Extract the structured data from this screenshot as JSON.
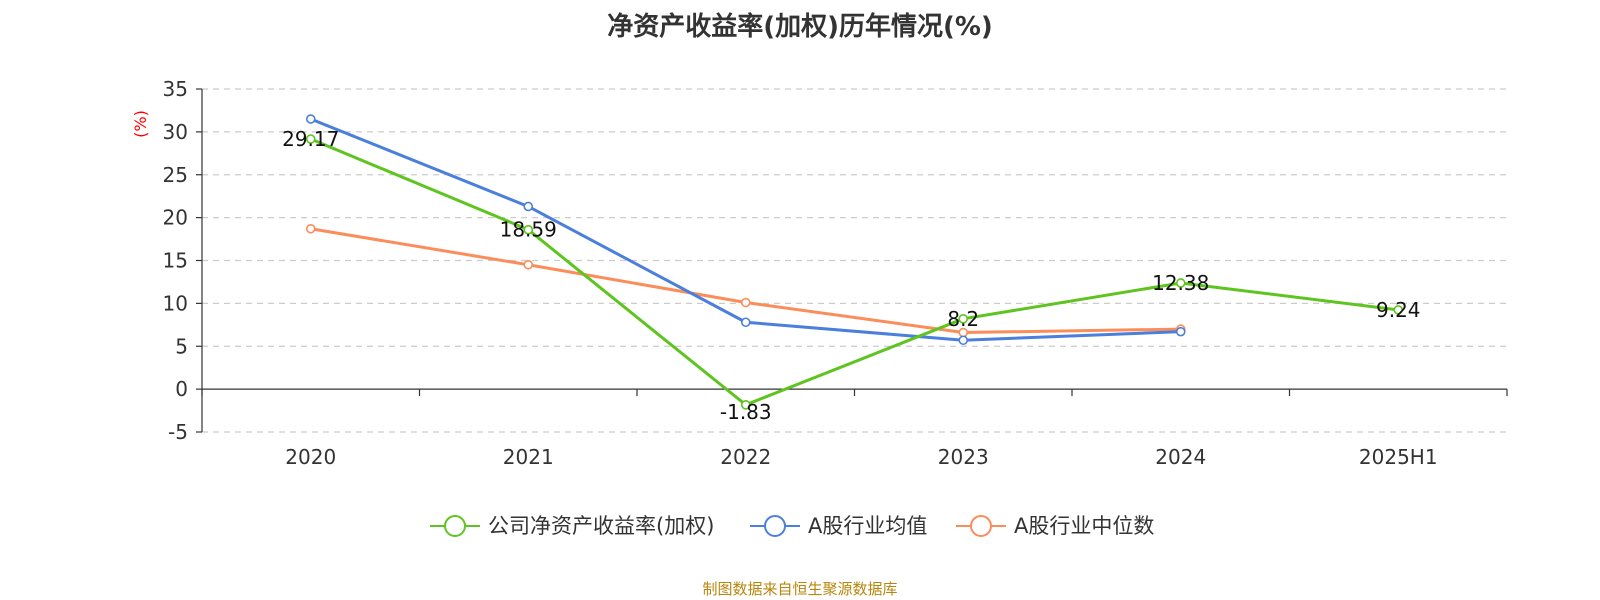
{
  "chart_data": {
    "type": "line",
    "title": "净资产收益率(加权)历年情况(%)",
    "unit_label": "(%)",
    "categories": [
      "2020",
      "2021",
      "2022",
      "2023",
      "2024",
      "2025H1"
    ],
    "ylim": [
      -5,
      35
    ],
    "yticks": [
      -5,
      0,
      5,
      10,
      15,
      20,
      25,
      30,
      35
    ],
    "grid": true,
    "legend_position": "bottom",
    "series": [
      {
        "name": "公司净资产收益率(加权)",
        "color": "#5ec41f",
        "values": [
          29.17,
          18.59,
          -1.83,
          8.2,
          12.38,
          9.24
        ],
        "show_labels": true
      },
      {
        "name": "A股行业均值",
        "color": "#4a7fdb",
        "values": [
          31.5,
          21.3,
          7.8,
          5.7,
          6.7,
          null
        ],
        "show_labels": false
      },
      {
        "name": "A股行业中位数",
        "color": "#fb8d5a",
        "values": [
          18.7,
          14.5,
          10.1,
          6.6,
          7.0,
          null
        ],
        "show_labels": false
      }
    ]
  },
  "source_text": "制图数据来自恒生聚源数据库",
  "colors": {
    "unit": "#ff0000",
    "source": "#b8860b",
    "grid": "#cccccc",
    "axis": "#333333"
  }
}
